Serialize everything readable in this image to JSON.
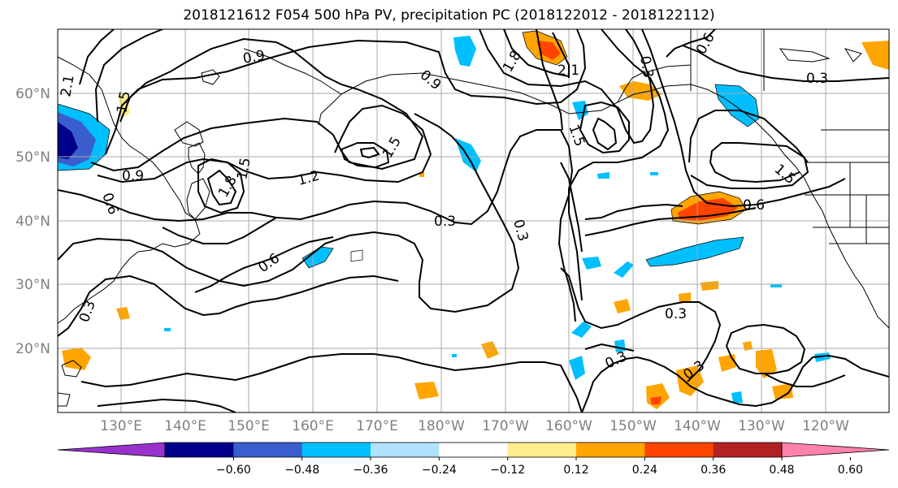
{
  "title": "2018121612 F054 500 hPa PV, precipitation PC (2018122012 - 2018122112)",
  "map": {
    "lat_labels": [
      "60°N",
      "50°N",
      "40°N",
      "30°N",
      "20°N"
    ],
    "lon_labels": [
      "130°E",
      "140°E",
      "150°E",
      "160°E",
      "170°E",
      "180°W",
      "170°W",
      "160°W",
      "150°W",
      "140°W",
      "130°W",
      "120°W"
    ],
    "contour_labels": [
      "0.9",
      "0.6",
      "0.6",
      "0.3",
      "0.3",
      "0.3",
      "0.3",
      "1.2",
      "1.5",
      "1.5",
      "1.8",
      "2.1",
      "0.9",
      "0.6",
      "0.3",
      "0.9",
      "1.5",
      "1.8",
      "1.5",
      "2.1",
      "0.6",
      "1.5",
      "0.3",
      "0.3",
      "0.3"
    ]
  },
  "colorbar": {
    "ticks": [
      "−0.60",
      "−0.48",
      "−0.36",
      "−0.24",
      "−0.12",
      "0.12",
      "0.24",
      "0.36",
      "0.48",
      "0.60"
    ],
    "colors": [
      "#9932cc",
      "#00008b",
      "#3a5fcd",
      "#00bfff",
      "#b0e2ff",
      "#ffffff",
      "#ffec8b",
      "#ffa500",
      "#ff4500",
      "#b22222",
      "#ff82ab"
    ]
  }
}
